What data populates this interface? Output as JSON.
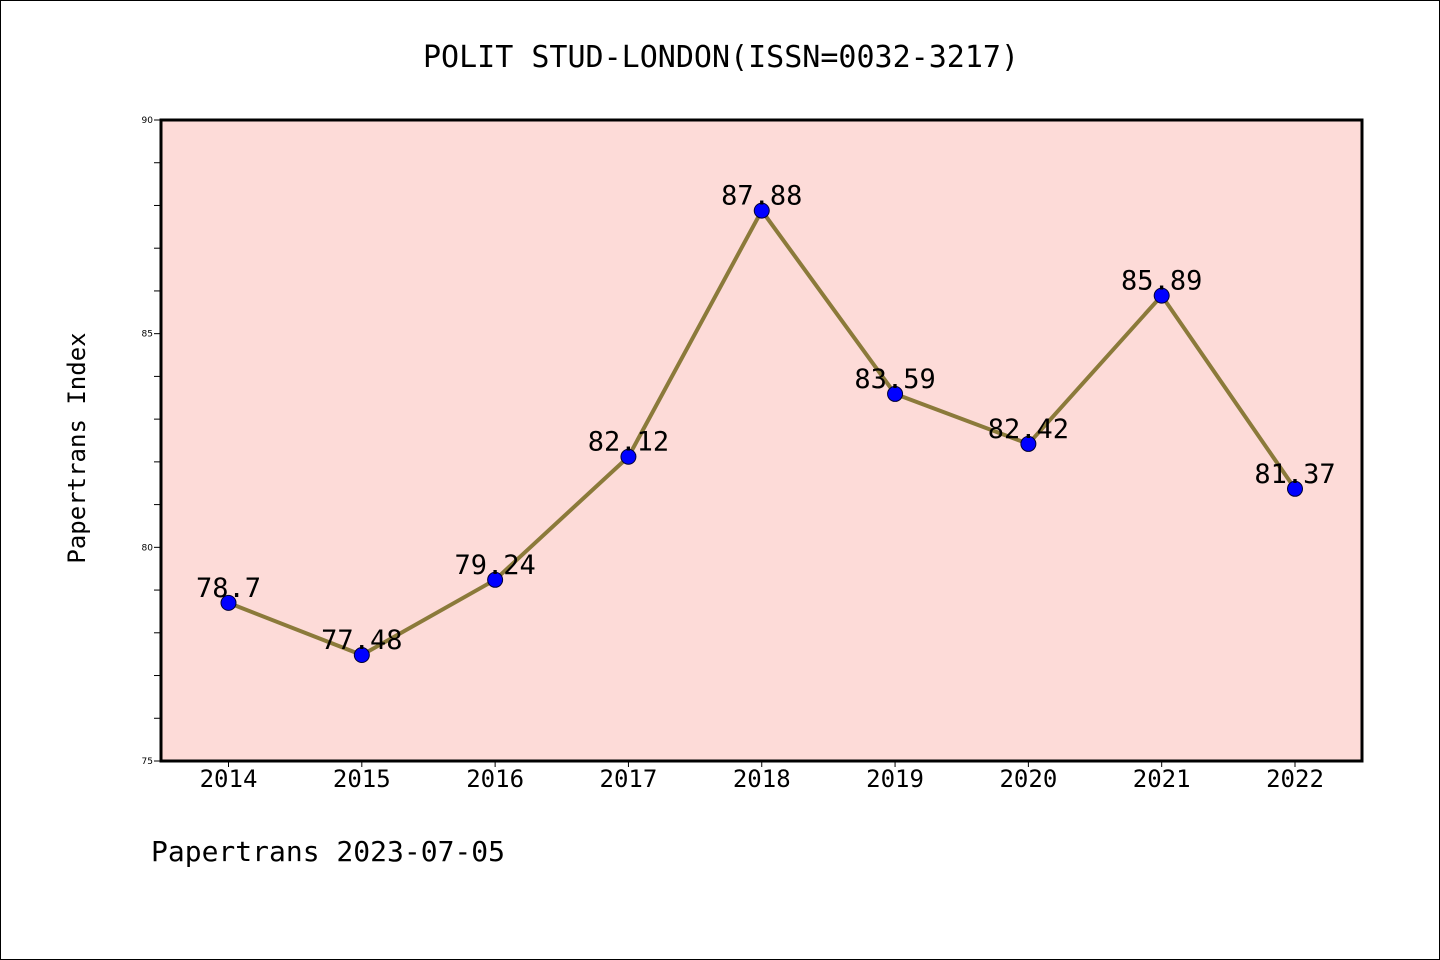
{
  "chart_data": {
    "type": "line",
    "title": "POLIT STUD-LONDON(ISSN=0032-3217)",
    "xlabel": "",
    "ylabel": "Papertrans Index",
    "categories": [
      "2014",
      "2015",
      "2016",
      "2017",
      "2018",
      "2019",
      "2020",
      "2021",
      "2022"
    ],
    "values": [
      78.7,
      77.48,
      79.24,
      82.12,
      87.88,
      83.59,
      82.42,
      85.89,
      81.37
    ],
    "data_labels": [
      "78.7",
      "77.48",
      "79.24",
      "82.12",
      "87.88",
      "83.59",
      "82.42",
      "85.89",
      "81.37"
    ],
    "ylim": [
      75,
      90
    ],
    "y_ticks": [
      "75",
      "80",
      "85",
      "90"
    ],
    "grid": false,
    "legend": "none"
  },
  "footer": {
    "note": "Papertrans 2023-07-05"
  },
  "colors": {
    "plot_background": "#fddbd8",
    "line": "#8b7a3a",
    "marker": "#0000ff",
    "axes": "#000000"
  }
}
